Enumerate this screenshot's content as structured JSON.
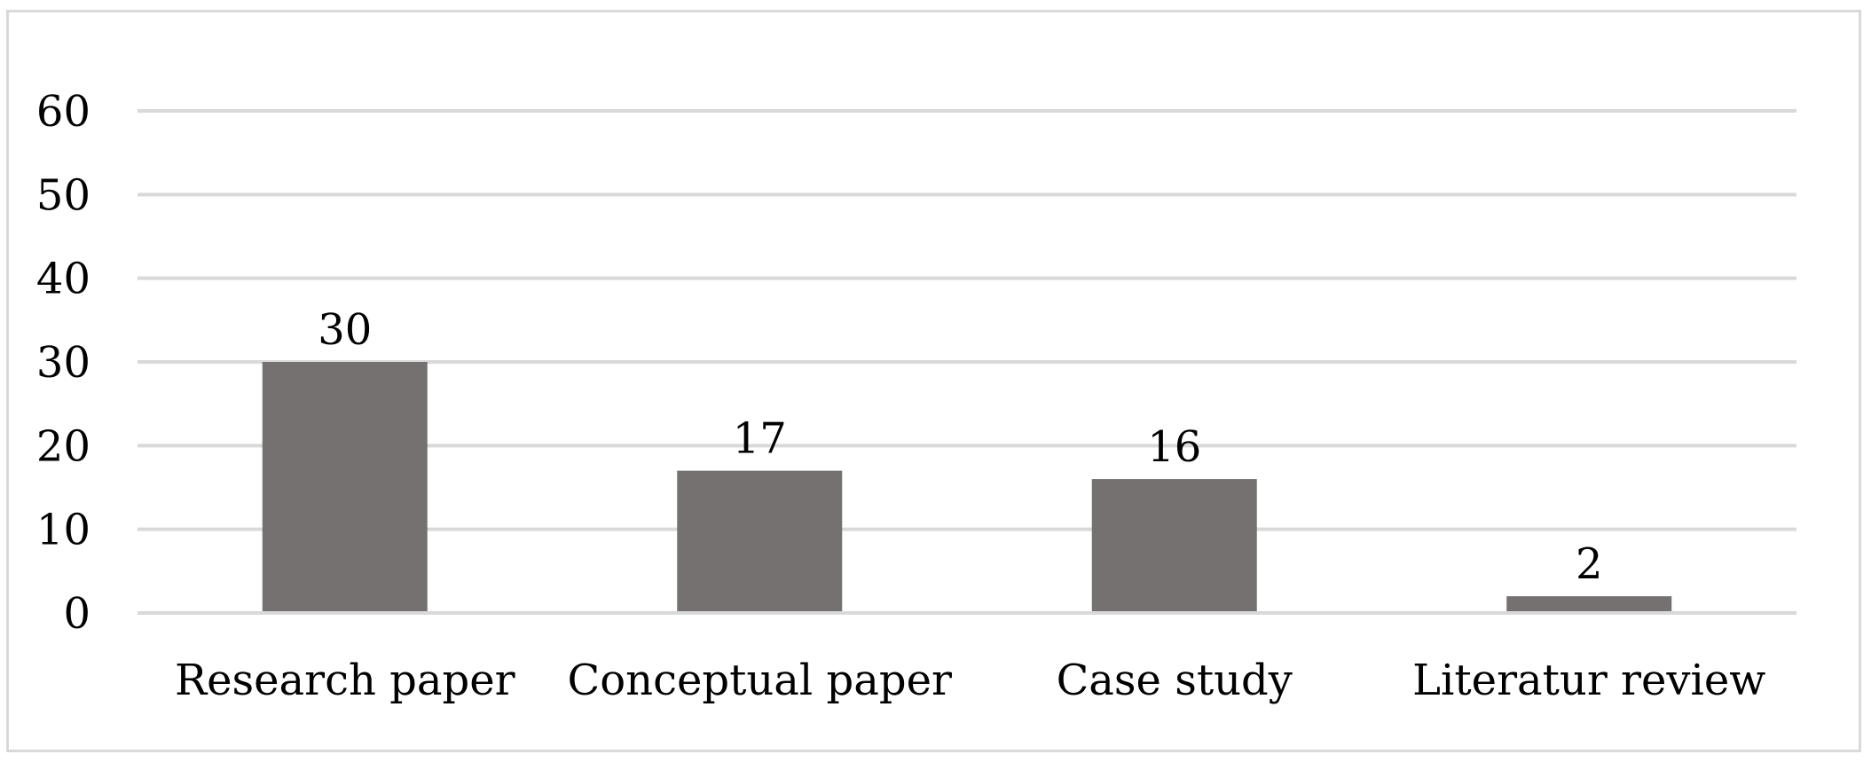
{
  "chart_data": {
    "type": "bar",
    "categories": [
      "Research paper",
      "Conceptual paper",
      "Case study",
      "Literatur review"
    ],
    "values": [
      30,
      17,
      16,
      2
    ],
    "data_labels": [
      "30",
      "17",
      "16",
      "2"
    ],
    "y_ticks": [
      0,
      10,
      20,
      30,
      40,
      50,
      60
    ],
    "ylim": [
      0,
      60
    ],
    "grid": true,
    "legend": "none",
    "title": "",
    "xlabel": "",
    "ylabel": "",
    "bar_color": "#767171",
    "grid_color": "#d9d9d9"
  }
}
